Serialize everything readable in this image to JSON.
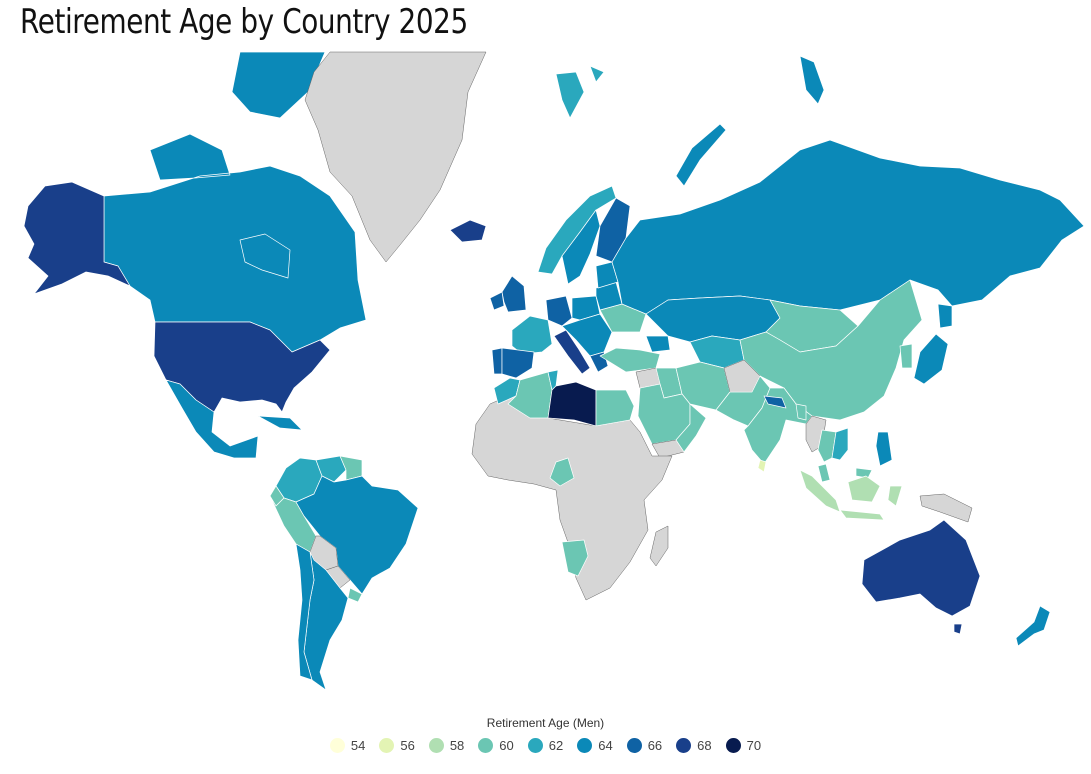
{
  "title": "Retirement Age by Country 2025",
  "legend": {
    "title": "Retirement Age (Men)",
    "items": [
      {
        "label": "54",
        "color": "#ffffd9"
      },
      {
        "label": "56",
        "color": "#e3f4b4"
      },
      {
        "label": "58",
        "color": "#b0dfb2"
      },
      {
        "label": "60",
        "color": "#6bc6b3"
      },
      {
        "label": "62",
        "color": "#2aa8bd"
      },
      {
        "label": "64",
        "color": "#0b89b8"
      },
      {
        "label": "66",
        "color": "#0f62a4"
      },
      {
        "label": "68",
        "color": "#193f8a"
      },
      {
        "label": "70",
        "color": "#081b4f"
      }
    ]
  },
  "colors": {
    "no_data": "#d6d6d6",
    "border": "#ffffff"
  },
  "regions": [
    {
      "name": "Canada",
      "value": 64
    },
    {
      "name": "Alaska",
      "value": 68
    },
    {
      "name": "United States",
      "value": 68
    },
    {
      "name": "Mexico",
      "value": 64
    },
    {
      "name": "Cuba",
      "value": 64
    },
    {
      "name": "Greenland",
      "value": null
    },
    {
      "name": "Iceland",
      "value": 68
    },
    {
      "name": "Venezuela",
      "value": 62
    },
    {
      "name": "Guyana",
      "value": 60
    },
    {
      "name": "Colombia",
      "value": 62
    },
    {
      "name": "Ecuador",
      "value": 60
    },
    {
      "name": "Peru",
      "value": 60
    },
    {
      "name": "Brazil",
      "value": 64
    },
    {
      "name": "Bolivia",
      "value": null
    },
    {
      "name": "Paraguay",
      "value": null
    },
    {
      "name": "Chile",
      "value": 64
    },
    {
      "name": "Argentina",
      "value": 64
    },
    {
      "name": "Uruguay",
      "value": 60
    },
    {
      "name": "Norway",
      "value": 62
    },
    {
      "name": "Sweden",
      "value": 64
    },
    {
      "name": "Finland",
      "value": 66
    },
    {
      "name": "United Kingdom",
      "value": 66
    },
    {
      "name": "Ireland",
      "value": 66
    },
    {
      "name": "France",
      "value": 62
    },
    {
      "name": "Spain",
      "value": 66
    },
    {
      "name": "Portugal",
      "value": 66
    },
    {
      "name": "Germany",
      "value": 66
    },
    {
      "name": "Poland",
      "value": 64
    },
    {
      "name": "Italy",
      "value": 68
    },
    {
      "name": "Balkans",
      "value": 64
    },
    {
      "name": "Greece",
      "value": 66
    },
    {
      "name": "Ukraine",
      "value": 60
    },
    {
      "name": "Belarus",
      "value": 64
    },
    {
      "name": "Baltics",
      "value": 64
    },
    {
      "name": "Russia",
      "value": 64
    },
    {
      "name": "Svalbard",
      "value": 62
    },
    {
      "name": "Novaya Zemlya",
      "value": 64
    },
    {
      "name": "Kazakhstan",
      "value": 64
    },
    {
      "name": "Turkey",
      "value": 60
    },
    {
      "name": "Caucasus",
      "value": 64
    },
    {
      "name": "Central Asia",
      "value": 62
    },
    {
      "name": "Mongolia",
      "value": 60
    },
    {
      "name": "China",
      "value": 60
    },
    {
      "name": "Korea",
      "value": 60
    },
    {
      "name": "Japan",
      "value": 64
    },
    {
      "name": "Iran",
      "value": 60
    },
    {
      "name": "Iraq",
      "value": 60
    },
    {
      "name": "Syria",
      "value": null
    },
    {
      "name": "Saudi Arabia",
      "value": 60
    },
    {
      "name": "Yemen",
      "value": null
    },
    {
      "name": "Oman",
      "value": 60
    },
    {
      "name": "Afghanistan",
      "value": null
    },
    {
      "name": "Pakistan",
      "value": 60
    },
    {
      "name": "India",
      "value": 60
    },
    {
      "name": "Nepal",
      "value": 66
    },
    {
      "name": "Bangladesh",
      "value": 60
    },
    {
      "name": "Sri Lanka",
      "value": 56
    },
    {
      "name": "Myanmar",
      "value": null
    },
    {
      "name": "Thailand",
      "value": 60
    },
    {
      "name": "Vietnam",
      "value": 62
    },
    {
      "name": "Philippines",
      "value": 64
    },
    {
      "name": "Malaysia",
      "value": 60
    },
    {
      "name": "Sumatra",
      "value": 58
    },
    {
      "name": "Java",
      "value": 58
    },
    {
      "name": "Borneo",
      "value": 58
    },
    {
      "name": "Sulawesi",
      "value": 58
    },
    {
      "name": "New Guinea",
      "value": null
    },
    {
      "name": "Australia",
      "value": 68
    },
    {
      "name": "Tasmania",
      "value": 68
    },
    {
      "name": "New Zealand",
      "value": 64
    },
    {
      "name": "Morocco",
      "value": 62
    },
    {
      "name": "Algeria",
      "value": 60
    },
    {
      "name": "Tunisia",
      "value": 62
    },
    {
      "name": "Libya",
      "value": 70
    },
    {
      "name": "Egypt",
      "value": 60
    },
    {
      "name": "Africa (other)",
      "value": null
    },
    {
      "name": "Cameroon",
      "value": 60
    },
    {
      "name": "Namibia",
      "value": 60
    },
    {
      "name": "Madagascar",
      "value": null
    }
  ]
}
